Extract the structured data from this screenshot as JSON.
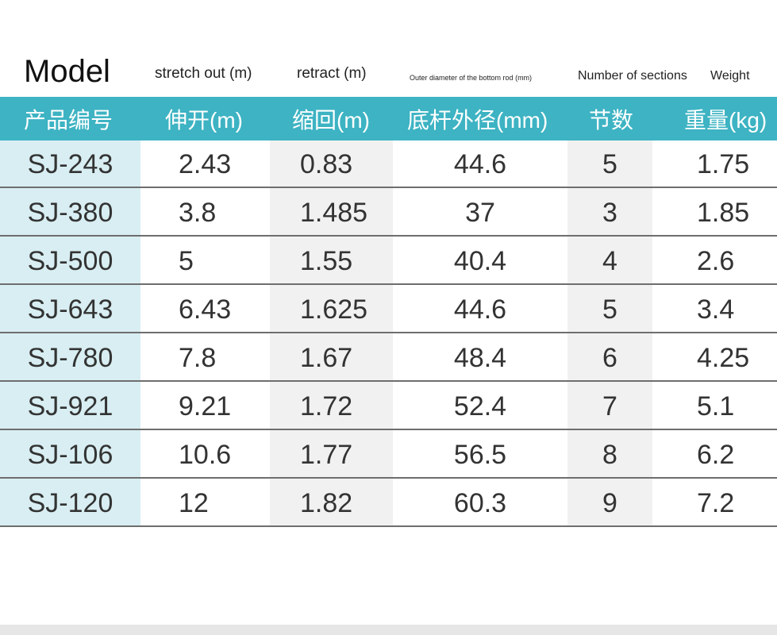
{
  "english_headers": [
    "Model",
    "stretch out (m)",
    "retract (m)",
    "Outer diameter of the bottom rod (mm)",
    "Number of sections",
    "Weight"
  ],
  "table": {
    "headers": [
      "产品编号",
      "伸开(m)",
      "缩回(m)",
      "底杆外径(mm)",
      "节数",
      "重量(kg)"
    ],
    "rows": [
      [
        "SJ-243",
        "2.43",
        "0.83",
        "44.6",
        "5",
        "1.75"
      ],
      [
        "SJ-380",
        "3.8",
        "1.485",
        "37",
        "3",
        "1.85"
      ],
      [
        "SJ-500",
        "5",
        "1.55",
        "40.4",
        "4",
        "2.6"
      ],
      [
        "SJ-643",
        "6.43",
        "1.625",
        "44.6",
        "5",
        "3.4"
      ],
      [
        "SJ-780",
        "7.8",
        "1.67",
        "48.4",
        "6",
        "4.25"
      ],
      [
        "SJ-921",
        "9.21",
        "1.72",
        "52.4",
        "7",
        "5.1"
      ],
      [
        "SJ-106",
        "10.6",
        "1.77",
        "56.5",
        "8",
        "6.2"
      ],
      [
        "SJ-120",
        "12",
        "1.82",
        "60.3",
        "9",
        "7.2"
      ]
    ]
  }
}
